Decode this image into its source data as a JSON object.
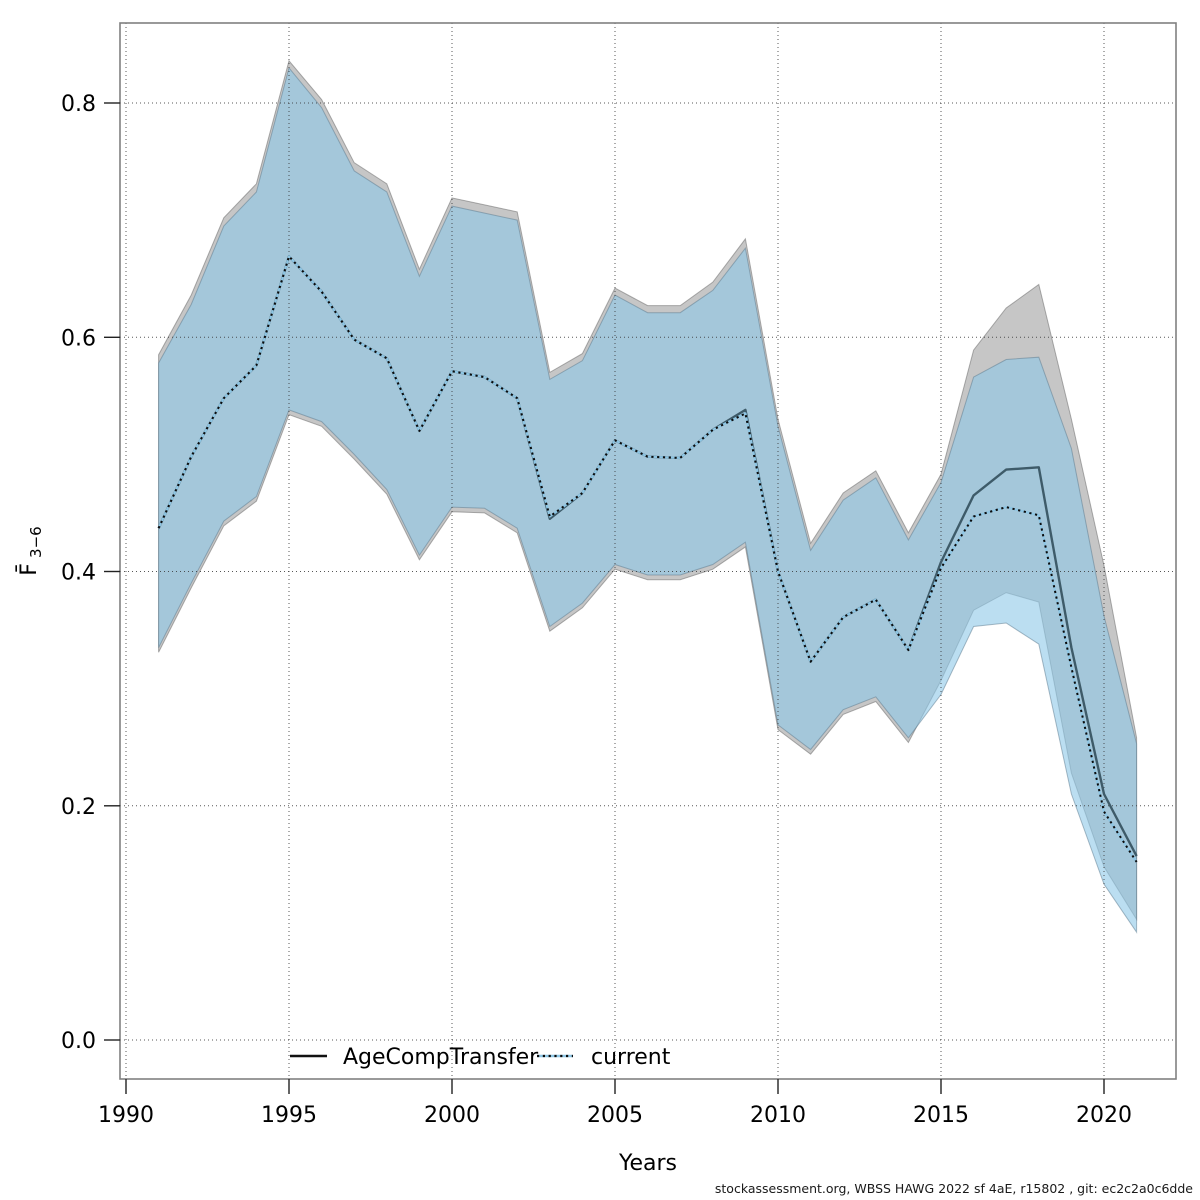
{
  "chart_data": {
    "type": "line",
    "title": "",
    "xlabel": "Years",
    "ylabel_main": "F̄",
    "ylabel_sub": "3−6",
    "grid": "dotted",
    "legend_position": "bottom-center-inside",
    "x_range": [
      1989.8,
      2022.2
    ],
    "y_range": [
      -0.033,
      0.868
    ],
    "x_ticks": [
      {
        "value": 1990,
        "label": "1990"
      },
      {
        "value": 1995,
        "label": "1995"
      },
      {
        "value": 2000,
        "label": "2000"
      },
      {
        "value": 2005,
        "label": "2005"
      },
      {
        "value": 2010,
        "label": "2010"
      },
      {
        "value": 2015,
        "label": "2015"
      },
      {
        "value": 2020,
        "label": "2020"
      }
    ],
    "y_ticks": [
      {
        "value": 0.0,
        "label": "0.0"
      },
      {
        "value": 0.2,
        "label": "0.2"
      },
      {
        "value": 0.4,
        "label": "0.4"
      },
      {
        "value": 0.6,
        "label": "0.6"
      },
      {
        "value": 0.8,
        "label": "0.8"
      }
    ],
    "years": [
      1991,
      1992,
      1993,
      1994,
      1995,
      1996,
      1997,
      1998,
      1999,
      2000,
      2001,
      2002,
      2003,
      2004,
      2005,
      2006,
      2007,
      2008,
      2009,
      2010,
      2011,
      2012,
      2013,
      2014,
      2015,
      2016,
      2017,
      2018,
      2019,
      2020,
      2021
    ],
    "series": [
      {
        "name": "AgeCompTransfer",
        "line_style": "solid",
        "line_color": "#3e5b69",
        "legend_sample_color": "#111111",
        "band_fill": "rgba(120,120,120,0.42)",
        "band_stroke": "rgba(110,110,110,0.55)",
        "fit": [
          0.437,
          0.498,
          0.548,
          0.576,
          0.669,
          0.639,
          0.598,
          0.582,
          0.52,
          0.571,
          0.566,
          0.548,
          0.445,
          0.467,
          0.512,
          0.498,
          0.497,
          0.521,
          0.538,
          0.4,
          0.323,
          0.361,
          0.376,
          0.333,
          0.408,
          0.465,
          0.487,
          0.489,
          0.335,
          0.21,
          0.157
        ],
        "lo": [
          0.331,
          0.386,
          0.439,
          0.46,
          0.534,
          0.524,
          0.496,
          0.466,
          0.41,
          0.451,
          0.45,
          0.433,
          0.349,
          0.369,
          0.402,
          0.393,
          0.393,
          0.402,
          0.421,
          0.265,
          0.244,
          0.278,
          0.289,
          0.254,
          0.307,
          0.367,
          0.382,
          0.374,
          0.228,
          0.148,
          0.103
        ],
        "hi": [
          0.585,
          0.636,
          0.702,
          0.731,
          0.836,
          0.803,
          0.749,
          0.731,
          0.658,
          0.719,
          0.713,
          0.707,
          0.57,
          0.586,
          0.642,
          0.627,
          0.627,
          0.647,
          0.684,
          0.53,
          0.424,
          0.467,
          0.486,
          0.433,
          0.483,
          0.589,
          0.625,
          0.645,
          0.53,
          0.405,
          0.258
        ]
      },
      {
        "name": "current",
        "line_style": "dotted",
        "line_color": "#0b0b0b",
        "line_underlay_color": "#8ec6e4",
        "legend_sample_color": "#8ec6e4",
        "band_fill": "rgba(141,200,232,0.60)",
        "band_stroke": "rgba(90,120,140,0.50)",
        "fit": [
          0.437,
          0.498,
          0.548,
          0.576,
          0.669,
          0.639,
          0.598,
          0.582,
          0.52,
          0.571,
          0.566,
          0.548,
          0.447,
          0.467,
          0.512,
          0.498,
          0.497,
          0.521,
          0.535,
          0.4,
          0.323,
          0.361,
          0.376,
          0.333,
          0.403,
          0.447,
          0.455,
          0.448,
          0.318,
          0.195,
          0.152
        ],
        "lo": [
          0.335,
          0.39,
          0.443,
          0.464,
          0.538,
          0.528,
          0.5,
          0.47,
          0.414,
          0.455,
          0.454,
          0.437,
          0.353,
          0.373,
          0.406,
          0.397,
          0.397,
          0.406,
          0.425,
          0.269,
          0.248,
          0.282,
          0.293,
          0.258,
          0.295,
          0.353,
          0.356,
          0.338,
          0.21,
          0.133,
          0.092
        ],
        "hi": [
          0.578,
          0.628,
          0.695,
          0.724,
          0.83,
          0.796,
          0.742,
          0.724,
          0.652,
          0.712,
          0.706,
          0.7,
          0.564,
          0.58,
          0.636,
          0.621,
          0.621,
          0.64,
          0.676,
          0.524,
          0.418,
          0.461,
          0.48,
          0.427,
          0.476,
          0.566,
          0.581,
          0.583,
          0.505,
          0.362,
          0.253
        ]
      }
    ],
    "legend": {
      "entries": [
        {
          "label": "AgeCompTransfer",
          "sample": "solid-black-line"
        },
        {
          "label": "current",
          "sample": "dotted-blue-line"
        }
      ]
    }
  },
  "footer": {
    "credit": "stockassessment.org, WBSS HAWG 2022 sf 4aE, r15802 , git: ec2c2a0c6dde"
  }
}
